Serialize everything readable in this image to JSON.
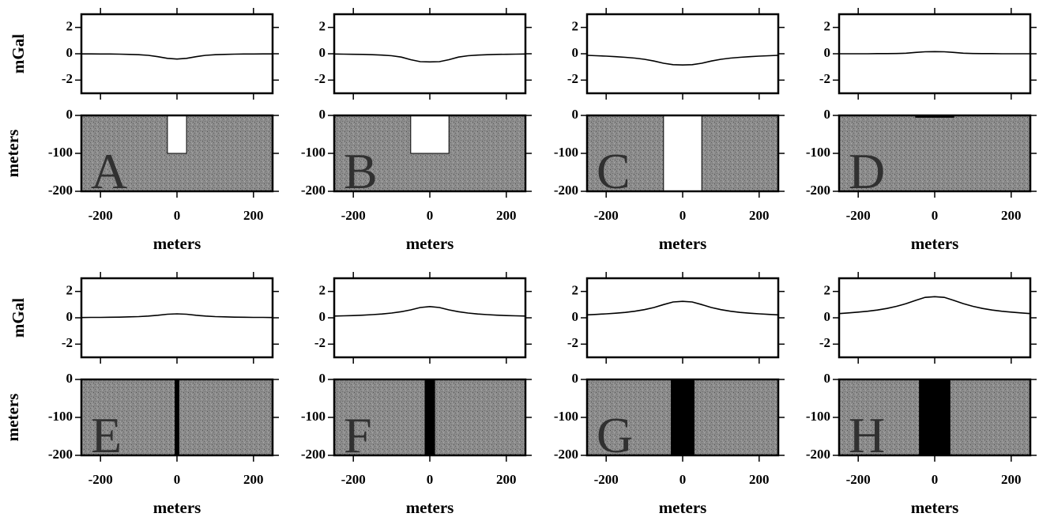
{
  "chart_data": [
    {
      "type": "line",
      "ylabel": "mGal",
      "x": [
        -250,
        -225,
        -200,
        -175,
        -150,
        -125,
        -100,
        -75,
        -50,
        -25,
        0,
        25,
        50,
        75,
        100,
        125,
        150,
        175,
        200,
        225,
        250
      ],
      "values": [
        -0.01,
        -0.01,
        -0.02,
        -0.02,
        -0.03,
        -0.05,
        -0.07,
        -0.12,
        -0.22,
        -0.35,
        -0.4,
        -0.35,
        -0.22,
        -0.12,
        -0.07,
        -0.05,
        -0.03,
        -0.02,
        -0.02,
        -0.01,
        -0.01
      ],
      "color": "#000000",
      "xlim": [
        -250,
        250
      ],
      "ylim": [
        -3,
        3
      ],
      "yticks": [
        -2,
        0,
        2
      ]
    },
    {
      "type": "section",
      "label": "A",
      "ylabel": "meters",
      "xlabel": "meters",
      "background": "#8c8c8c",
      "bodies": [
        {
          "xlim": [
            -25,
            25
          ],
          "ylim": [
            -100,
            0
          ],
          "color": "#ffffff"
        }
      ],
      "xlim": [
        -250,
        250
      ],
      "ylim": [
        -200,
        0
      ],
      "xticks": [
        -200,
        0,
        200
      ],
      "yticks": [
        -200,
        -100,
        0
      ]
    },
    {
      "type": "line",
      "x": [
        -250,
        -225,
        -200,
        -175,
        -150,
        -125,
        -100,
        -75,
        -50,
        -25,
        0,
        25,
        50,
        75,
        100,
        125,
        150,
        175,
        200,
        225,
        250
      ],
      "values": [
        -0.02,
        -0.03,
        -0.04,
        -0.05,
        -0.07,
        -0.1,
        -0.15,
        -0.25,
        -0.45,
        -0.6,
        -0.62,
        -0.6,
        -0.45,
        -0.25,
        -0.15,
        -0.1,
        -0.07,
        -0.05,
        -0.04,
        -0.03,
        -0.02
      ],
      "color": "#000000",
      "xlim": [
        -250,
        250
      ],
      "ylim": [
        -3,
        3
      ],
      "yticks": [
        -2,
        0,
        2
      ]
    },
    {
      "type": "section",
      "label": "B",
      "xlabel": "meters",
      "background": "#8c8c8c",
      "bodies": [
        {
          "xlim": [
            -50,
            50
          ],
          "ylim": [
            -100,
            0
          ],
          "color": "#ffffff"
        }
      ],
      "xlim": [
        -250,
        250
      ],
      "ylim": [
        -200,
        0
      ],
      "xticks": [
        -200,
        0,
        200
      ],
      "yticks": [
        -200,
        -100,
        0
      ]
    },
    {
      "type": "line",
      "x": [
        -250,
        -225,
        -200,
        -175,
        -150,
        -125,
        -100,
        -75,
        -50,
        -25,
        0,
        25,
        50,
        75,
        100,
        125,
        150,
        175,
        200,
        225,
        250
      ],
      "values": [
        -0.12,
        -0.15,
        -0.18,
        -0.22,
        -0.27,
        -0.33,
        -0.42,
        -0.55,
        -0.72,
        -0.83,
        -0.85,
        -0.83,
        -0.72,
        -0.55,
        -0.42,
        -0.33,
        -0.27,
        -0.22,
        -0.18,
        -0.15,
        -0.12
      ],
      "color": "#000000",
      "xlim": [
        -250,
        250
      ],
      "ylim": [
        -3,
        3
      ],
      "yticks": [
        -2,
        0,
        2
      ]
    },
    {
      "type": "section",
      "label": "C",
      "xlabel": "meters",
      "background": "#8c8c8c",
      "bodies": [
        {
          "xlim": [
            -50,
            50
          ],
          "ylim": [
            -200,
            0
          ],
          "color": "#ffffff"
        }
      ],
      "xlim": [
        -250,
        250
      ],
      "ylim": [
        -200,
        0
      ],
      "xticks": [
        -200,
        0,
        200
      ],
      "yticks": [
        -200,
        -100,
        0
      ]
    },
    {
      "type": "line",
      "x": [
        -250,
        -225,
        -200,
        -175,
        -150,
        -125,
        -100,
        -75,
        -50,
        -25,
        0,
        25,
        50,
        75,
        100,
        125,
        150,
        175,
        200,
        225,
        250
      ],
      "values": [
        0,
        0,
        0,
        0,
        0.01,
        0.01,
        0.02,
        0.04,
        0.1,
        0.15,
        0.16,
        0.15,
        0.1,
        0.04,
        0.02,
        0.01,
        0.01,
        0,
        0,
        0,
        0
      ],
      "color": "#000000",
      "xlim": [
        -250,
        250
      ],
      "ylim": [
        -3,
        3
      ],
      "yticks": [
        -2,
        0,
        2
      ]
    },
    {
      "type": "section",
      "label": "D",
      "xlabel": "meters",
      "background": "#8c8c8c",
      "bodies": [
        {
          "xlim": [
            -50,
            50
          ],
          "ylim": [
            -5,
            0
          ],
          "color": "#000000"
        }
      ],
      "xlim": [
        -250,
        250
      ],
      "ylim": [
        -200,
        0
      ],
      "xticks": [
        -200,
        0,
        200
      ],
      "yticks": [
        -200,
        -100,
        0
      ]
    },
    {
      "type": "line",
      "ylabel": "mGal",
      "x": [
        -250,
        -225,
        -200,
        -175,
        -150,
        -125,
        -100,
        -75,
        -50,
        -25,
        0,
        25,
        50,
        75,
        100,
        125,
        150,
        175,
        200,
        225,
        250
      ],
      "values": [
        0.02,
        0.03,
        0.03,
        0.04,
        0.05,
        0.07,
        0.09,
        0.13,
        0.19,
        0.27,
        0.3,
        0.27,
        0.19,
        0.13,
        0.09,
        0.07,
        0.05,
        0.04,
        0.03,
        0.03,
        0.02
      ],
      "color": "#000000",
      "xlim": [
        -250,
        250
      ],
      "ylim": [
        -3,
        3
      ],
      "yticks": [
        -2,
        0,
        2
      ]
    },
    {
      "type": "section",
      "label": "E",
      "ylabel": "meters",
      "xlabel": "meters",
      "background": "#8c8c8c",
      "bodies": [
        {
          "xlim": [
            -5,
            5
          ],
          "ylim": [
            -200,
            0
          ],
          "color": "#000000"
        }
      ],
      "xlim": [
        -250,
        250
      ],
      "ylim": [
        -200,
        0
      ],
      "xticks": [
        -200,
        0,
        200
      ],
      "yticks": [
        -200,
        -100,
        0
      ]
    },
    {
      "type": "line",
      "x": [
        -250,
        -225,
        -200,
        -175,
        -150,
        -125,
        -100,
        -75,
        -50,
        -25,
        0,
        25,
        50,
        75,
        100,
        125,
        150,
        175,
        200,
        225,
        250
      ],
      "values": [
        0.13,
        0.15,
        0.17,
        0.2,
        0.24,
        0.29,
        0.36,
        0.46,
        0.6,
        0.78,
        0.85,
        0.78,
        0.6,
        0.46,
        0.36,
        0.29,
        0.24,
        0.2,
        0.17,
        0.15,
        0.13
      ],
      "color": "#000000",
      "xlim": [
        -250,
        250
      ],
      "ylim": [
        -3,
        3
      ],
      "yticks": [
        -2,
        0,
        2
      ]
    },
    {
      "type": "section",
      "label": "F",
      "xlabel": "meters",
      "background": "#8c8c8c",
      "bodies": [
        {
          "xlim": [
            -12.5,
            12.5
          ],
          "ylim": [
            -200,
            0
          ],
          "color": "#000000"
        }
      ],
      "xlim": [
        -250,
        250
      ],
      "ylim": [
        -200,
        0
      ],
      "xticks": [
        -200,
        0,
        200
      ],
      "yticks": [
        -200,
        -100,
        0
      ]
    },
    {
      "type": "line",
      "x": [
        -250,
        -225,
        -200,
        -175,
        -150,
        -125,
        -100,
        -75,
        -50,
        -25,
        0,
        25,
        50,
        75,
        100,
        125,
        150,
        175,
        200,
        225,
        250
      ],
      "values": [
        0.22,
        0.26,
        0.3,
        0.35,
        0.41,
        0.5,
        0.62,
        0.78,
        1.0,
        1.2,
        1.25,
        1.2,
        1.0,
        0.78,
        0.62,
        0.5,
        0.41,
        0.35,
        0.3,
        0.26,
        0.22
      ],
      "color": "#000000",
      "xlim": [
        -250,
        250
      ],
      "ylim": [
        -3,
        3
      ],
      "yticks": [
        -2,
        0,
        2
      ]
    },
    {
      "type": "section",
      "label": "G",
      "xlabel": "meters",
      "background": "#8c8c8c",
      "bodies": [
        {
          "xlim": [
            -30,
            30
          ],
          "ylim": [
            -200,
            0
          ],
          "color": "#000000"
        }
      ],
      "xlim": [
        -250,
        250
      ],
      "ylim": [
        -200,
        0
      ],
      "xticks": [
        -200,
        0,
        200
      ],
      "yticks": [
        -200,
        -100,
        0
      ]
    },
    {
      "type": "line",
      "x": [
        -250,
        -225,
        -200,
        -175,
        -150,
        -125,
        -100,
        -75,
        -50,
        -25,
        0,
        25,
        50,
        75,
        100,
        125,
        150,
        175,
        200,
        225,
        250
      ],
      "values": [
        0.32,
        0.37,
        0.43,
        0.5,
        0.59,
        0.71,
        0.87,
        1.07,
        1.32,
        1.55,
        1.6,
        1.55,
        1.32,
        1.07,
        0.87,
        0.71,
        0.59,
        0.5,
        0.43,
        0.37,
        0.32
      ],
      "color": "#000000",
      "xlim": [
        -250,
        250
      ],
      "ylim": [
        -3,
        3
      ],
      "yticks": [
        -2,
        0,
        2
      ]
    },
    {
      "type": "section",
      "label": "H",
      "xlabel": "meters",
      "background": "#8c8c8c",
      "bodies": [
        {
          "xlim": [
            -40,
            40
          ],
          "ylim": [
            -200,
            0
          ],
          "color": "#000000"
        }
      ],
      "xlim": [
        -250,
        250
      ],
      "ylim": [
        -200,
        0
      ],
      "xticks": [
        -200,
        0,
        200
      ],
      "yticks": [
        -200,
        -100,
        0
      ]
    }
  ]
}
